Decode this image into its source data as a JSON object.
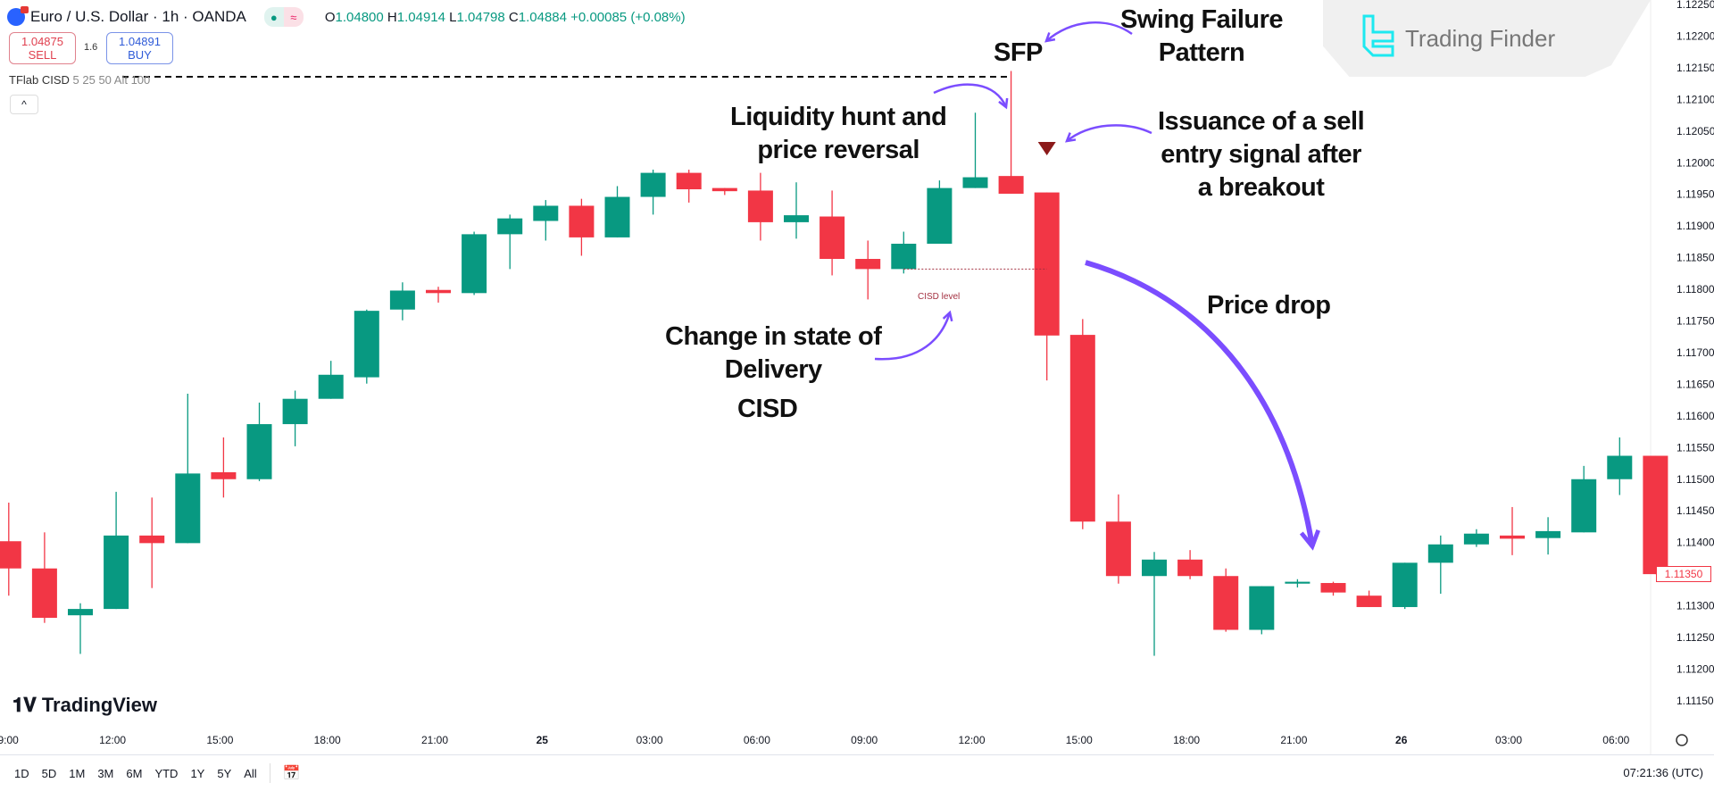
{
  "header": {
    "symbol": "Euro / U.S. Dollar · 1h · OANDA",
    "ohlc": {
      "o_label": "O",
      "o": "1.04800",
      "h_label": "H",
      "h": "1.04914",
      "l_label": "L",
      "l": "1.04798",
      "c_label": "C",
      "c": "1.04884",
      "change": "+0.00085 (+0.08%)"
    },
    "sell": {
      "price": "1.04875",
      "label": "SELL"
    },
    "buy": {
      "price": "1.04891",
      "label": "BUY"
    },
    "spread": "1.6",
    "indicator": {
      "name": "TFlab CISD",
      "params": "5 25 50 Alt 100"
    },
    "collapse_icon": "chevron-up"
  },
  "logo": {
    "text": "Trading Finder",
    "color": "#1de9f0"
  },
  "watermark": "TradingView",
  "annotations": {
    "swing_failure": [
      "Swing Failure",
      "Pattern"
    ],
    "sfp": "SFP",
    "liquidity": [
      "Liquidity hunt and",
      "price reversal"
    ],
    "issuance": [
      "Issuance of a sell",
      "entry signal after",
      "a breakout"
    ],
    "price_drop": "Price drop",
    "change_state": [
      "Change in state of",
      "Delivery"
    ],
    "cisd": "CISD",
    "cisd_level": "CISD level",
    "arrow_color": "#7b4dff"
  },
  "chart_data": {
    "type": "candlestick",
    "interval": "1h",
    "colors": {
      "up": "#089981",
      "down": "#f23645",
      "signal": "#8b1a1a"
    },
    "ylim": [
      1.1112,
      1.1226
    ],
    "y_ticks": [
      "1.12250",
      "1.12200",
      "1.12150",
      "1.12100",
      "1.12050",
      "1.12000",
      "1.11950",
      "1.11900",
      "1.11850",
      "1.11800",
      "1.11750",
      "1.11700",
      "1.11650",
      "1.11600",
      "1.11550",
      "1.11500",
      "1.11450",
      "1.11400",
      "1.11350",
      "1.11300",
      "1.11250",
      "1.11200",
      "1.11150"
    ],
    "x_ticks": [
      "09:00",
      "12:00",
      "15:00",
      "18:00",
      "21:00",
      "25",
      "03:00",
      "06:00",
      "09:00",
      "12:00",
      "15:00",
      "18:00",
      "21:00",
      "26",
      "03:00",
      "06:00"
    ],
    "last_price": "1.11350",
    "cisd_level": 1.11832,
    "swing_high": 1.12145,
    "sell_signal_candle": 30,
    "candles": [
      [
        1.11402,
        1.11463,
        1.11316,
        1.11359
      ],
      [
        1.11359,
        1.11416,
        1.11273,
        1.11281
      ],
      [
        1.11285,
        1.11304,
        1.11224,
        1.11295
      ],
      [
        1.11295,
        1.1148,
        1.11295,
        1.11411
      ],
      [
        1.11411,
        1.11471,
        1.11328,
        1.11399
      ],
      [
        1.11399,
        1.11635,
        1.11399,
        1.11509
      ],
      [
        1.11511,
        1.11566,
        1.11471,
        1.115
      ],
      [
        1.115,
        1.11621,
        1.11497,
        1.11587
      ],
      [
        1.11587,
        1.1164,
        1.11552,
        1.11627
      ],
      [
        1.11627,
        1.11687,
        1.11627,
        1.11665
      ],
      [
        1.11661,
        1.11768,
        1.11651,
        1.11766
      ],
      [
        1.11768,
        1.11811,
        1.11751,
        1.11798
      ],
      [
        1.11799,
        1.11804,
        1.11779,
        1.11794
      ],
      [
        1.11794,
        1.11891,
        1.11791,
        1.11887
      ],
      [
        1.11887,
        1.11918,
        1.11832,
        1.11912
      ],
      [
        1.11908,
        1.11941,
        1.11877,
        1.11932
      ],
      [
        1.11932,
        1.11943,
        1.11853,
        1.11882
      ],
      [
        1.11882,
        1.11963,
        1.11882,
        1.11946
      ],
      [
        1.11946,
        1.11989,
        1.11918,
        1.11984
      ],
      [
        1.11984,
        1.11989,
        1.11937,
        1.11958
      ],
      [
        1.1196,
        1.1196,
        1.11949,
        1.11955
      ],
      [
        1.11956,
        1.11984,
        1.11877,
        1.11906
      ],
      [
        1.11906,
        1.11969,
        1.1188,
        1.11917
      ],
      [
        1.11915,
        1.11956,
        1.11822,
        1.11848
      ],
      [
        1.11848,
        1.11877,
        1.11784,
        1.11832
      ],
      [
        1.11832,
        1.11891,
        1.11825,
        1.11872
      ],
      [
        1.11872,
        1.11972,
        1.11872,
        1.1196
      ],
      [
        1.1196,
        1.12079,
        1.1196,
        1.11977
      ],
      [
        1.11979,
        1.12145,
        1.11951,
        1.11951
      ],
      [
        1.11953,
        1.11953,
        1.11656,
        1.11727
      ],
      [
        1.11728,
        1.11753,
        1.11421,
        1.11433
      ],
      [
        1.11433,
        1.11476,
        1.11335,
        1.11347
      ],
      [
        1.11347,
        1.11385,
        1.11221,
        1.11373
      ],
      [
        1.11373,
        1.11388,
        1.11342,
        1.11347
      ],
      [
        1.11347,
        1.11359,
        1.11259,
        1.11262
      ],
      [
        1.11262,
        1.11331,
        1.11255,
        1.11331
      ],
      [
        1.11335,
        1.11342,
        1.11329,
        1.11338
      ],
      [
        1.11336,
        1.11338,
        1.11316,
        1.11321
      ],
      [
        1.11316,
        1.11324,
        1.11298,
        1.11298
      ],
      [
        1.11298,
        1.11368,
        1.11295,
        1.11368
      ],
      [
        1.11368,
        1.11411,
        1.11319,
        1.11397
      ],
      [
        1.11397,
        1.11421,
        1.11393,
        1.11414
      ],
      [
        1.11411,
        1.11456,
        1.1138,
        1.11406
      ],
      [
        1.11407,
        1.1144,
        1.11381,
        1.11418
      ],
      [
        1.11416,
        1.11521,
        1.11416,
        1.115
      ],
      [
        1.115,
        1.11566,
        1.11475,
        1.11537
      ],
      [
        1.11537,
        1.11537,
        1.1135,
        1.1135
      ]
    ]
  },
  "bottom": {
    "ranges": [
      "1D",
      "5D",
      "1M",
      "3M",
      "6M",
      "YTD",
      "1Y",
      "5Y",
      "All"
    ],
    "calendar_icon": "calendar-goto",
    "clock": "07:21:36 (UTC)",
    "settings_icon": "eye"
  }
}
